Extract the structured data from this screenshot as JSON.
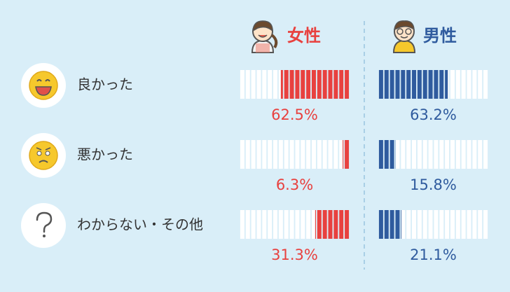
{
  "chart_data": {
    "type": "bar",
    "categories": [
      "良かった",
      "悪かった",
      "わからない・その他"
    ],
    "series": [
      {
        "name": "女性",
        "color": "#e8413f",
        "values": [
          62.5,
          6.3,
          31.3
        ],
        "value_labels": [
          "62.5%",
          "6.3%",
          "31.3%"
        ]
      },
      {
        "name": "男性",
        "color": "#2f5b9e",
        "values": [
          63.2,
          15.8,
          21.1
        ],
        "value_labels": [
          "63.2%",
          "15.8%",
          "21.1%"
        ]
      }
    ],
    "xlim": [
      0,
      100
    ]
  }
}
